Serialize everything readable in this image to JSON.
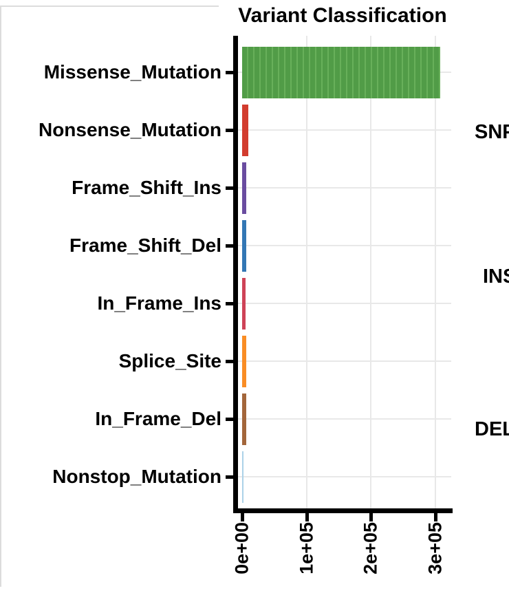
{
  "chart_data": {
    "type": "bar",
    "orientation": "horizontal",
    "title": "Variant Classification",
    "categories": [
      "Missense_Mutation",
      "Nonsense_Mutation",
      "Frame_Shift_Ins",
      "Frame_Shift_Del",
      "In_Frame_Ins",
      "Splice_Site",
      "In_Frame_Del",
      "Nonstop_Mutation"
    ],
    "values": [
      308000,
      10000,
      6400,
      5900,
      5000,
      6400,
      6900,
      2100
    ],
    "bar_colors": [
      "#549e4a",
      "#d23c2e",
      "#6a4ca0",
      "#3377b4",
      "#ce4357",
      "#f98d25",
      "#a3663b",
      "#acd2e8"
    ],
    "missense_stripes": {
      "base": "#519c47",
      "light": "#68b05a"
    },
    "xticks": {
      "labels": [
        "0e+00",
        "1e+05",
        "2e+05",
        "3e+05"
      ],
      "values": [
        0,
        100000,
        200000,
        300000
      ]
    },
    "xlim": [
      0,
      324000
    ],
    "xlabel": "",
    "ylabel": "",
    "grid": true,
    "legend": "none",
    "gridline_color": "#e8e8e8",
    "axis_color": "#000000",
    "frame_line_color": "#dcdcdc"
  },
  "adjacent_panel": {
    "labels": [
      "SNP",
      "INS",
      "DEL"
    ]
  }
}
